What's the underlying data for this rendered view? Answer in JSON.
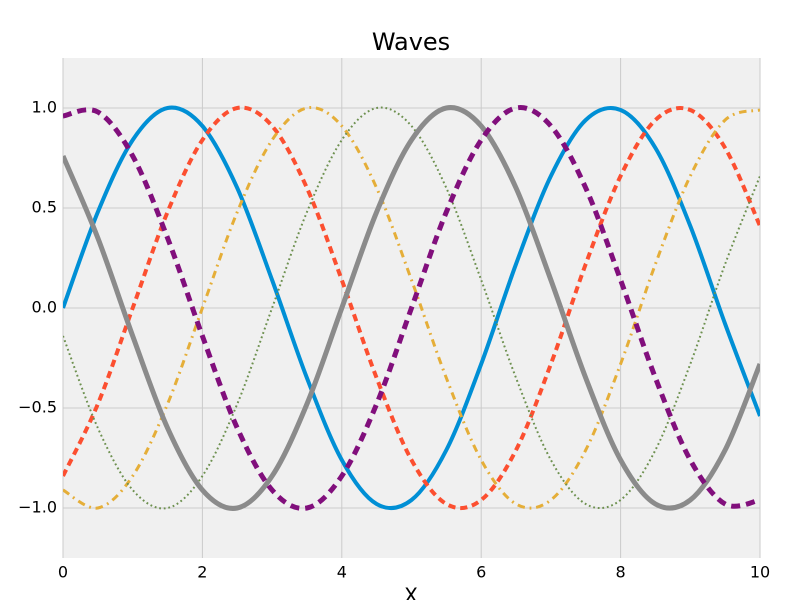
{
  "chart_data": {
    "type": "line",
    "title": "Waves",
    "x_label": "X",
    "x": [
      0,
      0.5,
      1,
      1.5,
      2,
      2.5,
      3,
      3.5,
      4,
      4.5,
      5,
      5.5,
      6,
      6.5,
      7,
      7.5,
      8,
      8.5,
      9,
      9.5,
      10
    ],
    "series": [
      {
        "color": "#008fd5",
        "linestyle": "solid",
        "values": [
          0,
          0.48,
          0.84,
          1,
          0.91,
          0.6,
          0.14,
          -0.35,
          -0.76,
          -0.98,
          -0.96,
          -0.71,
          -0.28,
          0.22,
          0.66,
          0.94,
          0.99,
          0.8,
          0.41,
          -0.08,
          -0.54
        ]
      },
      {
        "color": "#fc4f30",
        "linestyle": "dashed",
        "values": [
          -0.84,
          -0.48,
          0,
          0.48,
          0.84,
          1,
          0.91,
          0.6,
          0.14,
          -0.35,
          -0.76,
          -0.98,
          -0.96,
          -0.71,
          -0.28,
          0.22,
          0.66,
          0.94,
          0.99,
          0.8,
          0.41
        ]
      },
      {
        "color": "#e5ae38",
        "linestyle": "dashdot",
        "values": [
          -0.91,
          -1,
          -0.84,
          -0.48,
          0,
          0.48,
          0.84,
          1,
          0.91,
          0.6,
          0.14,
          -0.35,
          -0.76,
          -0.98,
          -0.96,
          -0.71,
          -0.28,
          0.22,
          0.66,
          0.94,
          0.99
        ]
      },
      {
        "color": "#6d904f",
        "linestyle": "dotted",
        "values": [
          -0.14,
          -0.6,
          -0.91,
          -1,
          -0.84,
          -0.48,
          0,
          0.48,
          0.84,
          1,
          0.91,
          0.6,
          0.14,
          -0.35,
          -0.76,
          -0.98,
          -0.96,
          -0.71,
          -0.28,
          0.22,
          0.66
        ]
      },
      {
        "color": "#8b8b8b",
        "linestyle": "solid",
        "values": [
          0.76,
          0.35,
          -0.14,
          -0.6,
          -0.91,
          -1,
          -0.84,
          -0.48,
          0,
          0.48,
          0.84,
          1,
          0.91,
          0.6,
          0.14,
          -0.35,
          -0.76,
          -0.98,
          -0.96,
          -0.71,
          -0.28
        ]
      },
      {
        "color": "#810f7c",
        "linestyle": "dashed",
        "values": [
          0.96,
          0.98,
          0.76,
          0.35,
          -0.14,
          -0.6,
          -0.91,
          -1,
          -0.84,
          -0.48,
          0,
          0.48,
          0.84,
          1,
          0.91,
          0.6,
          0.14,
          -0.35,
          -0.76,
          -0.98,
          -0.96
        ]
      }
    ],
    "xlim": [
      0,
      10
    ],
    "xticks": [
      0,
      2,
      4,
      6,
      8,
      10
    ],
    "ylim": [
      -1.25,
      1.25
    ],
    "yticks": [
      {
        "value": -1,
        "label": "−1.0"
      },
      {
        "value": -0.5,
        "label": "−0.5"
      },
      {
        "value": 0,
        "label": "0.0"
      },
      0.5,
      {
        "value": 1,
        "label": "1.0"
      }
    ],
    "grid": true,
    "background": "#f0f0f0"
  }
}
